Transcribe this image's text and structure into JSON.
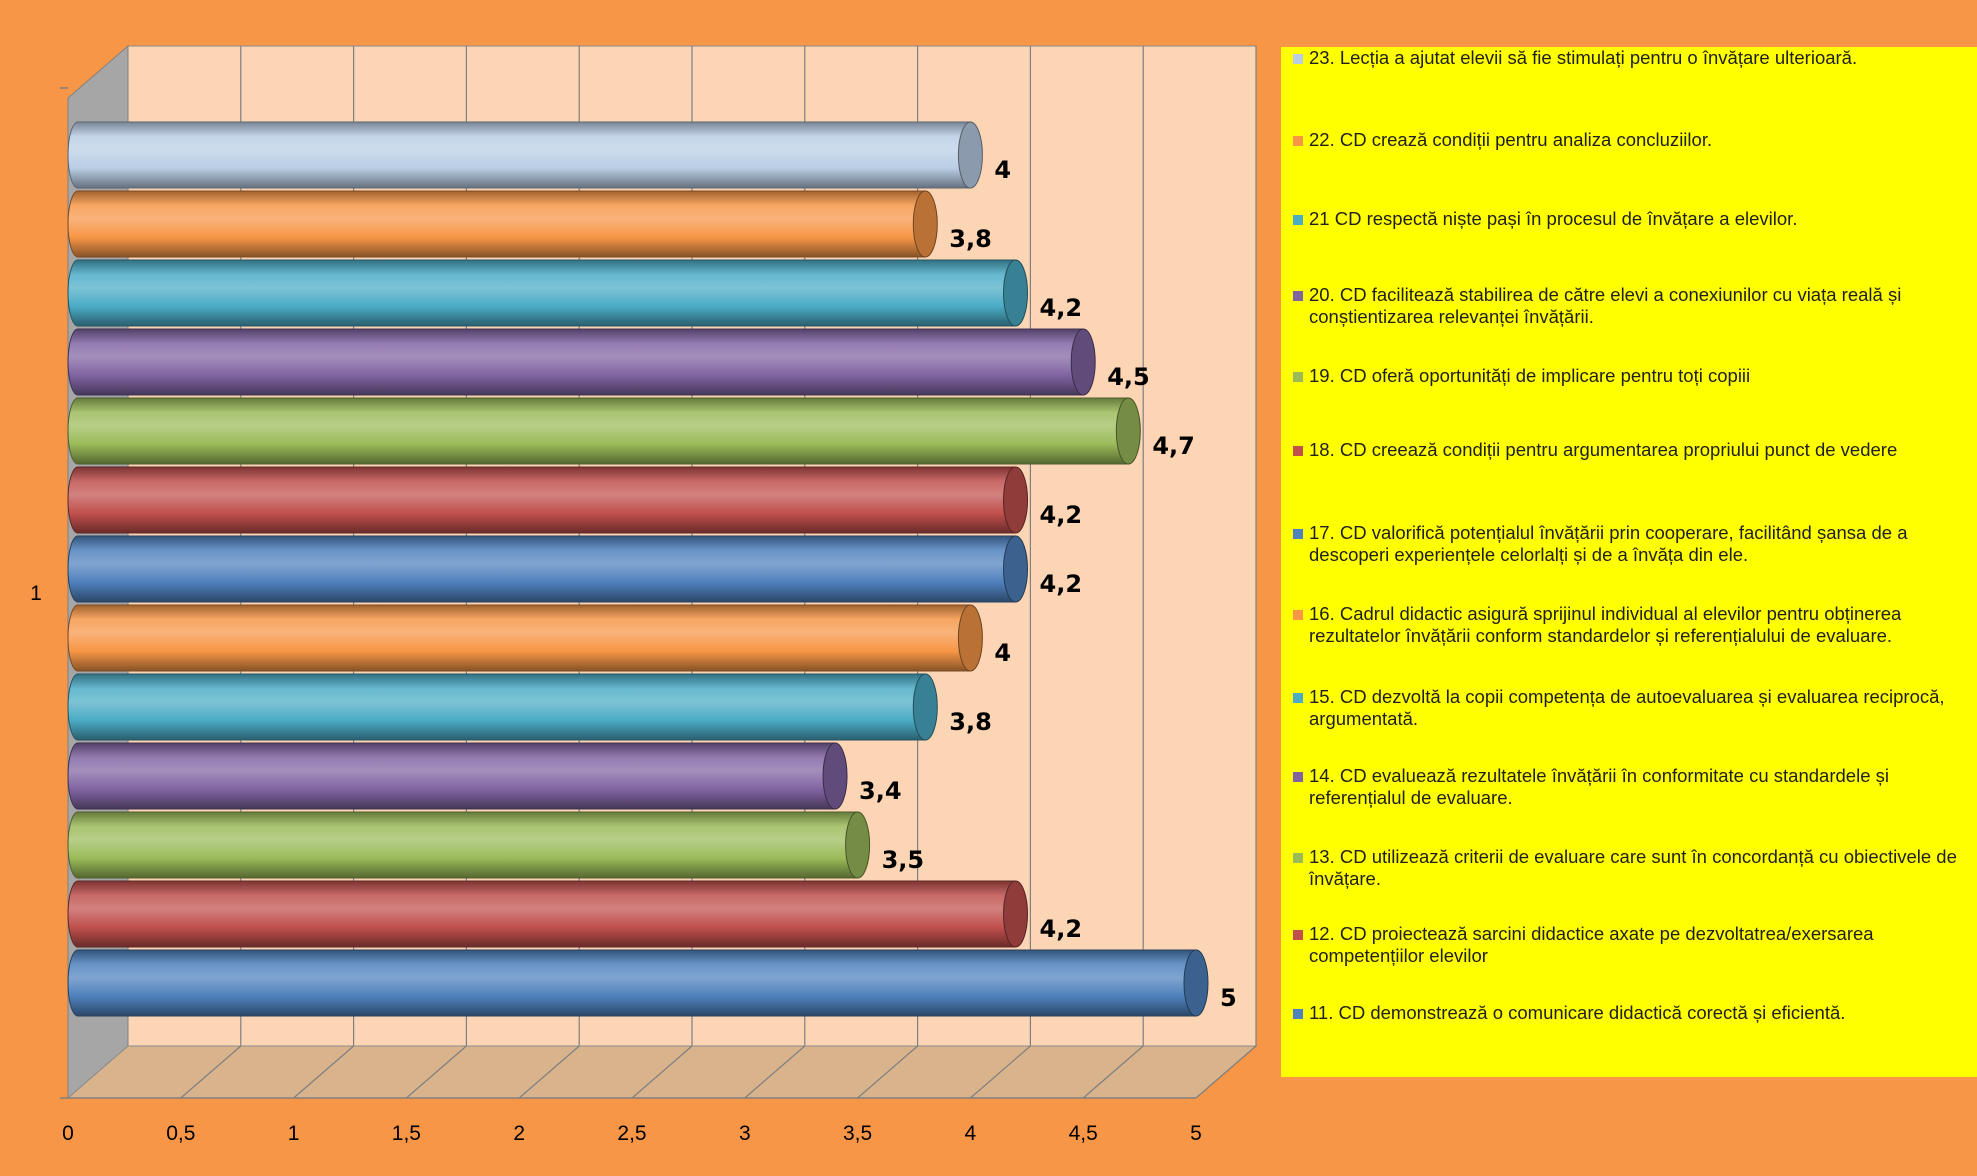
{
  "chart_data": {
    "type": "bar",
    "orientation": "horizontal",
    "three_d": true,
    "category_axis_labels": [
      "1"
    ],
    "xlim": [
      0,
      5
    ],
    "x_ticks": [
      "0",
      "0,5",
      "1",
      "1,5",
      "2",
      "2,5",
      "3",
      "3,5",
      "4",
      "4,5",
      "5"
    ],
    "grid": true,
    "legend_position": "right",
    "series": [
      {
        "name": "11. CD demonstrează o comunicare didactică corectă și eficientă.",
        "value": 5,
        "label": "5",
        "color": "#4F81BD"
      },
      {
        "name": "12. CD proiectează sarcini didactice axate pe dezvoltatrea/exersarea competențiilor elevilor",
        "value": 4.2,
        "label": "4,2",
        "color": "#C0504D"
      },
      {
        "name": "13. CD utilizează criterii de evaluare care sunt în concordanță cu obiectivele de învățare.",
        "value": 3.5,
        "label": "3,5",
        "color": "#9BBB59"
      },
      {
        "name": "14. CD evaluează rezultatele învățării în conformitate cu standardele și referențialul de evaluare.",
        "value": 3.4,
        "label": "3,4",
        "color": "#8064A2"
      },
      {
        "name": "15. CD dezvoltă la copii competența de autoevaluarea și evaluarea reciprocă, argumentată.",
        "value": 3.8,
        "label": "3,8",
        "color": "#4BACC6"
      },
      {
        "name": "16. Cadrul didactic asigură sprijinul individual al elevilor pentru obținerea rezultatelor învățării conform standardelor și referențialului de evaluare.",
        "value": 4,
        "label": "4",
        "color": "#F79646"
      },
      {
        "name": "17. CD valorifică potențialul învățării prin cooperare, facilitând șansa de a descoperi experiențele celorlalți și de a învăța din ele.",
        "value": 4.2,
        "label": "4,2",
        "color": "#4F81BD"
      },
      {
        "name": "18. CD creează condiții pentru argumentarea propriului punct de vedere",
        "value": 4.2,
        "label": "4,2",
        "color": "#C0504D"
      },
      {
        "name": "19. CD oferă oportunități de implicare pentru toți copiii",
        "value": 4.7,
        "label": "4,7",
        "color": "#9BBB59"
      },
      {
        "name": "20. CD facilitează stabilirea de către elevi a conexiunilor cu viața reală și conștientizarea relevanței învățării.",
        "value": 4.5,
        "label": "4,5",
        "color": "#8064A2"
      },
      {
        "name": "21 CD respectă niște pași în procesul de învățare a elevilor.",
        "value": 4.2,
        "label": "4,2",
        "color": "#4BACC6"
      },
      {
        "name": "22. CD crează condiții pentru analiza concluziilor.",
        "value": 3.8,
        "label": "3,8",
        "color": "#F79646"
      },
      {
        "name": "23. Lecția a ajutat elevii să fie stimulați pentru o învățare ulterioară.",
        "value": 4,
        "label": "4",
        "color": "#B9CDE5"
      }
    ]
  },
  "colors": {
    "background": "#F79646",
    "plot_back_wall": "#FCD5B5",
    "plot_side_wall": "#A6A6A6",
    "plot_floor": "#D9B38C",
    "legend_background": "#FFFF00"
  }
}
